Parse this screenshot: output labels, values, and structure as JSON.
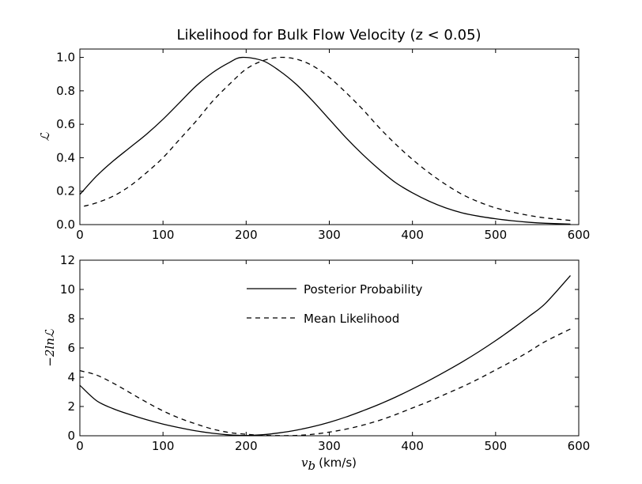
{
  "chart_data": [
    {
      "type": "line",
      "title": "Likelihood for Bulk Flow Velocity (z < 0.05)",
      "xlabel": "",
      "ylabel": "ℒ",
      "xlim": [
        0,
        600
      ],
      "ylim": [
        0,
        1.05
      ],
      "xticks": [
        "0",
        "100",
        "200",
        "300",
        "400",
        "500",
        "600"
      ],
      "yticks": [
        "0.0",
        "0.2",
        "0.4",
        "0.6",
        "0.8",
        "1.0"
      ],
      "series": [
        {
          "name": "Posterior Probability",
          "style": "solid",
          "x": [
            0,
            20,
            40,
            60,
            80,
            100,
            120,
            140,
            160,
            180,
            195,
            220,
            240,
            260,
            280,
            300,
            320,
            340,
            360,
            380,
            400,
            420,
            440,
            460,
            480,
            500,
            520,
            540,
            560,
            590
          ],
          "y": [
            0.18,
            0.29,
            0.38,
            0.46,
            0.54,
            0.63,
            0.73,
            0.83,
            0.91,
            0.97,
            1.0,
            0.98,
            0.92,
            0.84,
            0.74,
            0.63,
            0.52,
            0.42,
            0.33,
            0.25,
            0.19,
            0.14,
            0.1,
            0.07,
            0.05,
            0.035,
            0.023,
            0.014,
            0.008,
            0.003
          ]
        },
        {
          "name": "Mean Likelihood",
          "style": "dashed",
          "x": [
            5,
            20,
            40,
            60,
            80,
            100,
            120,
            140,
            160,
            180,
            200,
            220,
            240,
            260,
            280,
            300,
            320,
            340,
            360,
            380,
            400,
            420,
            440,
            460,
            480,
            500,
            520,
            540,
            560,
            590
          ],
          "y": [
            0.11,
            0.13,
            0.17,
            0.23,
            0.31,
            0.4,
            0.51,
            0.62,
            0.74,
            0.84,
            0.93,
            0.98,
            1.0,
            0.99,
            0.95,
            0.88,
            0.79,
            0.69,
            0.58,
            0.48,
            0.39,
            0.31,
            0.24,
            0.18,
            0.135,
            0.1,
            0.075,
            0.055,
            0.04,
            0.025
          ]
        }
      ]
    },
    {
      "type": "line",
      "title": "",
      "xlabel": "v_b (km/s)",
      "xlabel_var": "v",
      "xlabel_sub": "b",
      "xlabel_unit": "(km/s)",
      "ylabel": "−2lnℒ",
      "xlim": [
        0,
        600
      ],
      "ylim": [
        0,
        12
      ],
      "xticks": [
        "0",
        "100",
        "200",
        "300",
        "400",
        "500",
        "600"
      ],
      "yticks": [
        "0",
        "2",
        "4",
        "6",
        "8",
        "10",
        "12"
      ],
      "legend": {
        "placement": "top-center",
        "entries": [
          {
            "label": "Posterior Probability",
            "style": "solid"
          },
          {
            "label": "Mean Likelihood",
            "style": "dashed"
          }
        ]
      },
      "series": [
        {
          "name": "Posterior Probability",
          "style": "solid",
          "x": [
            0,
            20,
            40,
            60,
            80,
            100,
            120,
            140,
            160,
            180,
            200,
            220,
            240,
            260,
            280,
            300,
            320,
            340,
            360,
            380,
            400,
            420,
            440,
            460,
            480,
            500,
            520,
            540,
            560,
            590
          ],
          "y": [
            3.45,
            2.4,
            1.85,
            1.45,
            1.1,
            0.8,
            0.55,
            0.33,
            0.17,
            0.06,
            0.02,
            0.07,
            0.2,
            0.38,
            0.62,
            0.92,
            1.28,
            1.7,
            2.15,
            2.65,
            3.2,
            3.78,
            4.4,
            5.05,
            5.75,
            6.5,
            7.3,
            8.15,
            9.05,
            10.95
          ]
        },
        {
          "name": "Mean Likelihood",
          "style": "dashed",
          "x": [
            0,
            20,
            40,
            60,
            80,
            100,
            120,
            140,
            160,
            180,
            200,
            220,
            240,
            260,
            280,
            300,
            320,
            340,
            360,
            380,
            400,
            420,
            440,
            460,
            480,
            500,
            520,
            540,
            560,
            590
          ],
          "y": [
            4.45,
            4.15,
            3.6,
            2.95,
            2.3,
            1.7,
            1.2,
            0.8,
            0.45,
            0.22,
            0.1,
            0.03,
            0.01,
            0.02,
            0.1,
            0.25,
            0.45,
            0.72,
            1.05,
            1.45,
            1.9,
            2.35,
            2.85,
            3.35,
            3.9,
            4.5,
            5.1,
            5.75,
            6.45,
            7.3
          ]
        }
      ]
    }
  ]
}
